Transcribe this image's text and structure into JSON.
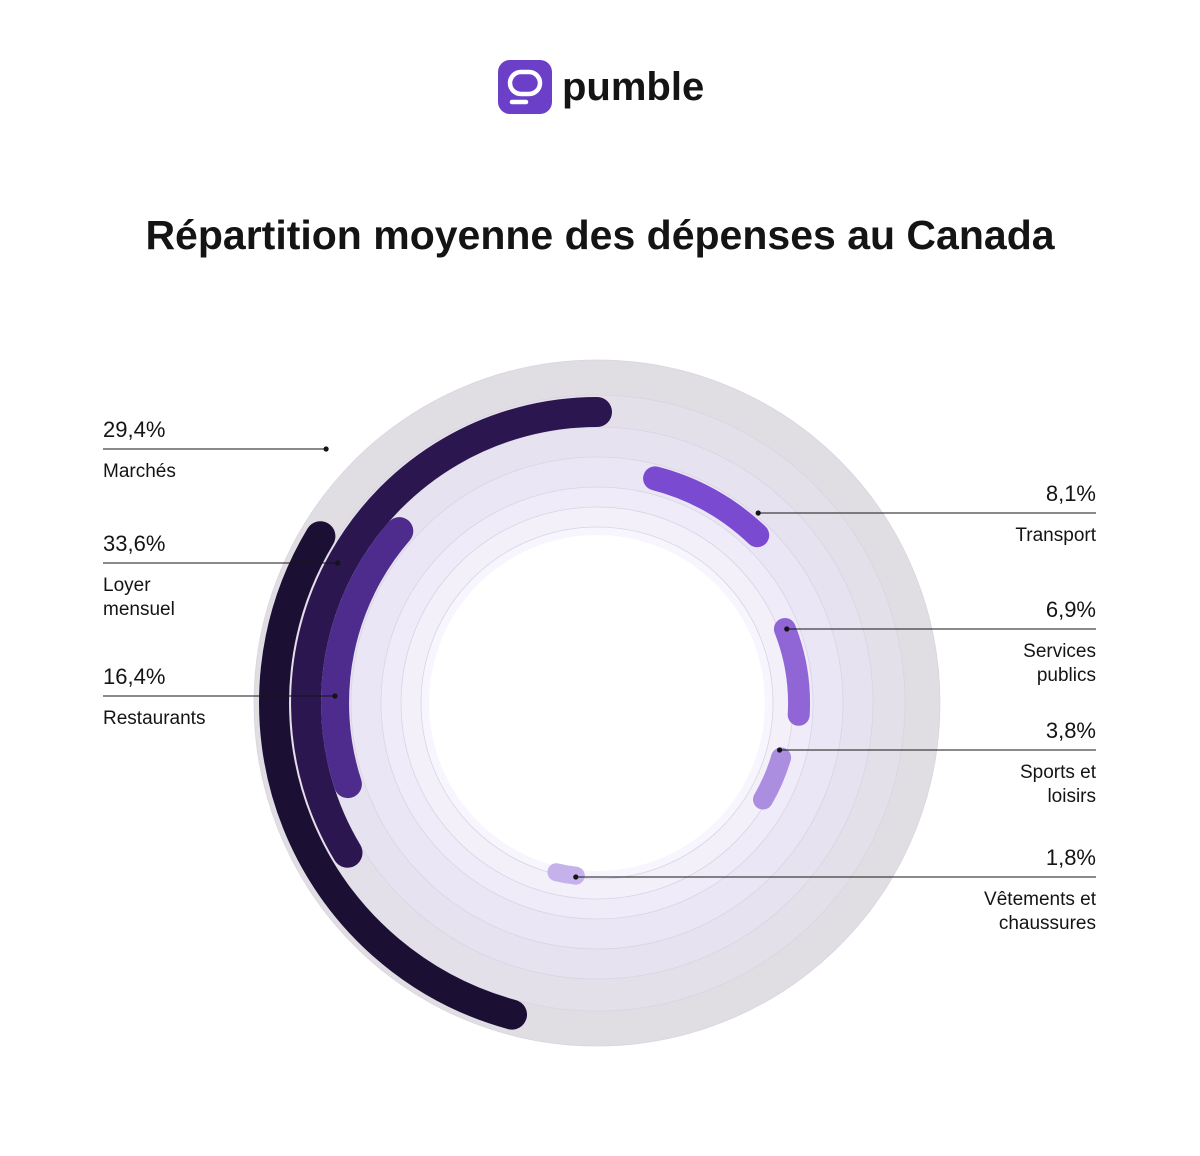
{
  "brand": {
    "name": "pumble",
    "color": "#6c3fc9"
  },
  "chart_data": {
    "type": "radial-bar",
    "title": "Répartition moyenne des dépenses au Canada",
    "unit": "%",
    "categories": [
      {
        "label_lines": [
          "Marchés"
        ],
        "value": 29.4,
        "value_label": "29,4%",
        "color": "#1b0f34",
        "side": "left"
      },
      {
        "label_lines": [
          "Loyer",
          "mensuel"
        ],
        "value": 33.6,
        "value_label": "33,6%",
        "color": "#2b1650",
        "side": "left"
      },
      {
        "label_lines": [
          "Restaurants"
        ],
        "value": 16.4,
        "value_label": "16,4%",
        "color": "#4e2c8e",
        "side": "left"
      },
      {
        "label_lines": [
          "Transport"
        ],
        "value": 8.1,
        "value_label": "8,1%",
        "color": "#7a4ad0",
        "side": "right"
      },
      {
        "label_lines": [
          "Services",
          "publics"
        ],
        "value": 6.9,
        "value_label": "6,9%",
        "color": "#9065d6",
        "side": "right"
      },
      {
        "label_lines": [
          "Sports et",
          "loisirs"
        ],
        "value": 3.8,
        "value_label": "3,8%",
        "color": "#ab8ee0",
        "side": "right"
      },
      {
        "label_lines": [
          "Vêtements et",
          "chaussures"
        ],
        "value": 1.8,
        "value_label": "1,8%",
        "color": "#c5b2ea",
        "side": "right"
      }
    ],
    "background_rings": [
      "#e0dee2",
      "#e4e0ea",
      "#e7e2f0",
      "#ebe6f5",
      "#efebf8",
      "#f3f0fa",
      "#f7f5fd"
    ]
  }
}
